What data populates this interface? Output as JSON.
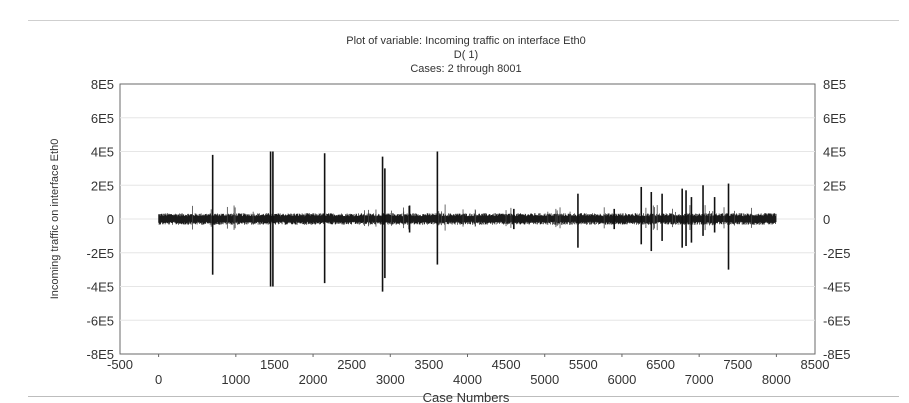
{
  "chart_data": {
    "type": "line",
    "title": "Plot of variable: Incoming traffic on interface Eth0",
    "subtitle": "D( 1)",
    "subtitle2": "Cases: 2 through 8001",
    "ylabel": "Incoming traffic on interface Eth0",
    "xlabel": "Case Numbers",
    "ylim": [
      -800000,
      800000
    ],
    "y_ticks": [
      "8E5",
      "6E5",
      "4E5",
      "2E5",
      "0",
      "-2E5",
      "-4E5",
      "-6E5",
      "-8E5"
    ],
    "y_tick_values": [
      800000,
      600000,
      400000,
      200000,
      0,
      -200000,
      -400000,
      -600000,
      -800000
    ],
    "x_top_ticks": [
      "-500",
      "1500",
      "2500",
      "3500",
      "4500",
      "5500",
      "6500",
      "7500",
      "8500"
    ],
    "x_bottom_ticks": [
      "0",
      "1000",
      "2000",
      "3000",
      "4000",
      "5000",
      "6000",
      "7000",
      "8000"
    ],
    "xlim": [
      -500,
      8500
    ],
    "baseline_noise_amplitude": 30000,
    "series": [
      {
        "values_description": "differenced incoming traffic",
        "spikes": [
          {
            "x": 700,
            "up": 380000,
            "down": -330000
          },
          {
            "x": 1450,
            "up": 400000,
            "down": -400000
          },
          {
            "x": 1480,
            "up": 400000,
            "down": -400000
          },
          {
            "x": 2150,
            "up": 390000,
            "down": -380000
          },
          {
            "x": 2900,
            "up": 370000,
            "down": -430000
          },
          {
            "x": 2930,
            "up": 300000,
            "down": -350000
          },
          {
            "x": 3250,
            "up": 80000,
            "down": -80000
          },
          {
            "x": 3610,
            "up": 400000,
            "down": -270000
          },
          {
            "x": 4600,
            "up": 60000,
            "down": -60000
          },
          {
            "x": 5430,
            "up": 150000,
            "down": -170000
          },
          {
            "x": 5900,
            "up": 60000,
            "down": -60000
          },
          {
            "x": 6250,
            "up": 190000,
            "down": -150000
          },
          {
            "x": 6380,
            "up": 160000,
            "down": -190000
          },
          {
            "x": 6520,
            "up": 150000,
            "down": -130000
          },
          {
            "x": 6780,
            "up": 180000,
            "down": -170000
          },
          {
            "x": 6830,
            "up": 170000,
            "down": -160000
          },
          {
            "x": 6900,
            "up": 130000,
            "down": -140000
          },
          {
            "x": 7050,
            "up": 200000,
            "down": -100000
          },
          {
            "x": 7200,
            "up": 130000,
            "down": -80000
          },
          {
            "x": 7380,
            "up": 210000,
            "down": -300000
          }
        ]
      }
    ]
  }
}
